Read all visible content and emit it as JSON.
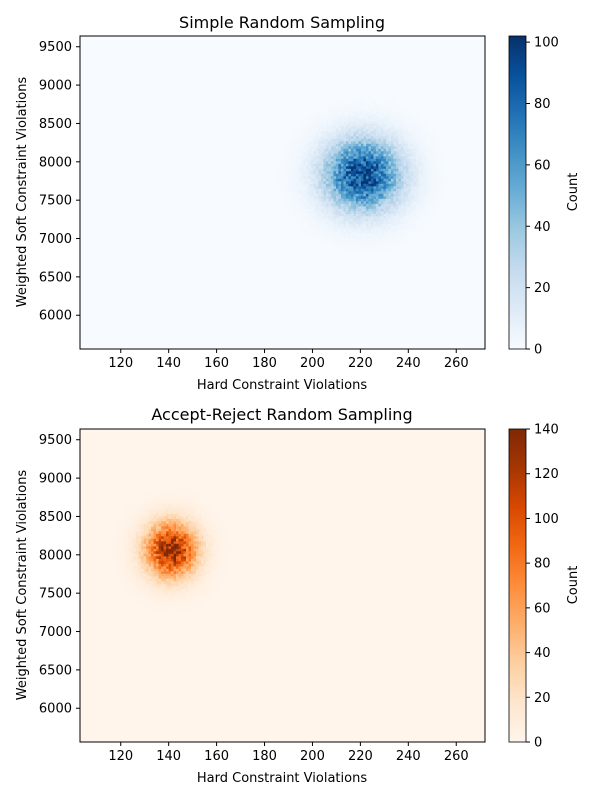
{
  "chart_data": [
    {
      "type": "heatmap",
      "title": "Simple Random Sampling",
      "xlabel": "Hard Constraint Violations",
      "ylabel": "Weighted Soft Constraint Violations",
      "colorbar_label": "Count",
      "colormap": "Blues",
      "xlim": [
        103,
        272
      ],
      "ylim": [
        5560,
        9640
      ],
      "xticks": [
        120,
        140,
        160,
        180,
        200,
        220,
        240,
        260
      ],
      "yticks": [
        6000,
        6500,
        7000,
        7500,
        8000,
        8500,
        9000,
        9500
      ],
      "clim": [
        0,
        102
      ],
      "cticks": [
        0,
        20,
        40,
        60,
        80,
        100
      ],
      "distribution": {
        "x_center": 221,
        "y_center": 7830,
        "x_spread": 11,
        "y_spread": 320,
        "peak_count": 102
      },
      "color_stops": [
        "#f7fbff",
        "#deebf7",
        "#c6dbef",
        "#9ecae1",
        "#6baed6",
        "#4292c6",
        "#2171b5",
        "#08519c",
        "#08306b"
      ]
    },
    {
      "type": "heatmap",
      "title": "Accept-Reject Random Sampling",
      "xlabel": "Hard Constraint Violations",
      "ylabel": "Weighted Soft Constraint Violations",
      "colorbar_label": "Count",
      "colormap": "Oranges",
      "xlim": [
        103,
        272
      ],
      "ylim": [
        5560,
        9640
      ],
      "xticks": [
        120,
        140,
        160,
        180,
        200,
        220,
        240,
        260
      ],
      "yticks": [
        6000,
        6500,
        7000,
        7500,
        8000,
        8500,
        9000,
        9500
      ],
      "clim": [
        0,
        140
      ],
      "cticks": [
        0,
        20,
        40,
        60,
        80,
        100,
        120,
        140
      ],
      "distribution": {
        "x_center": 141,
        "y_center": 8060,
        "x_spread": 7.5,
        "y_spread": 250,
        "peak_count": 140
      },
      "color_stops": [
        "#fff5eb",
        "#fee6ce",
        "#fdd0a2",
        "#fdae6b",
        "#fd8d3c",
        "#f16913",
        "#d94801",
        "#a63603",
        "#7f2704"
      ]
    }
  ]
}
